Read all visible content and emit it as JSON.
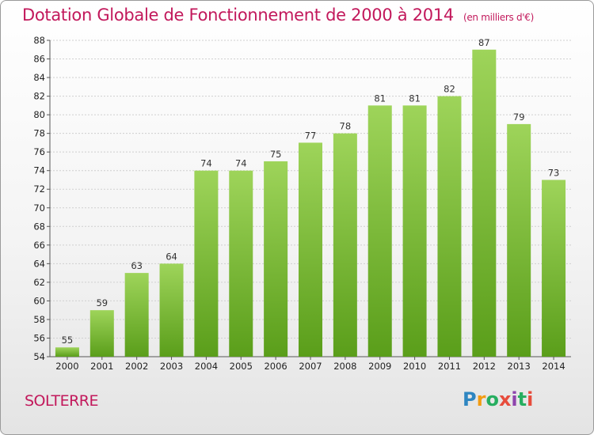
{
  "header": {
    "title": "Dotation Globale de Fonctionnement de 2000 à 2014",
    "subtitle": "(en milliers d'€)"
  },
  "footer": {
    "commune": "SOLTERRE",
    "logo": "Proxiti"
  },
  "colors": {
    "title": "#c2185b",
    "bar_top": "#9ed45a",
    "bar_bottom": "#5a9e1a",
    "grid": "#cfcfcf"
  },
  "chart_data": {
    "type": "bar",
    "title": "Dotation Globale de Fonctionnement de 2000 à 2014",
    "subtitle": "(en milliers d'€)",
    "xlabel": "",
    "ylabel": "",
    "categories": [
      "2000",
      "2001",
      "2002",
      "2003",
      "2004",
      "2005",
      "2006",
      "2007",
      "2008",
      "2009",
      "2010",
      "2011",
      "2012",
      "2013",
      "2014"
    ],
    "values": [
      55,
      59,
      63,
      64,
      74,
      74,
      75,
      77,
      78,
      81,
      81,
      82,
      87,
      79,
      73
    ],
    "ylim": [
      54,
      88
    ],
    "yticks": [
      54,
      56,
      58,
      60,
      62,
      64,
      66,
      68,
      70,
      72,
      74,
      76,
      78,
      80,
      82,
      84,
      86,
      88
    ],
    "grid": true,
    "data_labels": true
  }
}
